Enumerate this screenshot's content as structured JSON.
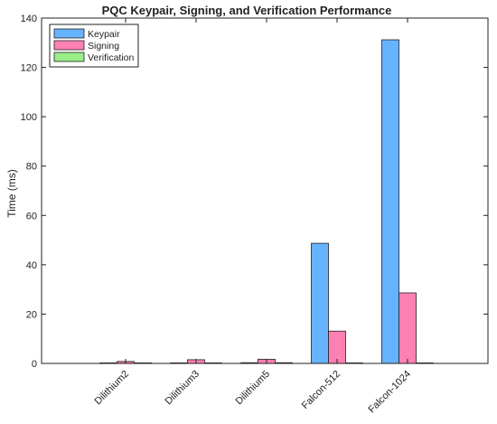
{
  "chart_data": {
    "type": "bar",
    "title": "PQC Keypair, Signing, and Verification Performance",
    "xlabel": "",
    "ylabel": "Time (ms)",
    "ylim": [
      0,
      140
    ],
    "yticks": [
      0,
      20,
      40,
      60,
      80,
      100,
      120,
      140
    ],
    "grid": false,
    "legend_position": "top-left",
    "categories": [
      "Dilithium2",
      "Dilithium3",
      "Dilithium5",
      "Falcon-512",
      "Falcon-1024"
    ],
    "series": [
      {
        "name": "Keypair",
        "color": "#66b3ff",
        "values": [
          0.1,
          0.2,
          0.3,
          48.7,
          131.2
        ]
      },
      {
        "name": "Signing",
        "color": "#ff80b3",
        "values": [
          0.8,
          1.5,
          1.7,
          13.1,
          28.6
        ]
      },
      {
        "name": "Verification",
        "color": "#99ee88",
        "values": [
          0.1,
          0.2,
          0.3,
          0.1,
          0.2
        ]
      }
    ]
  }
}
